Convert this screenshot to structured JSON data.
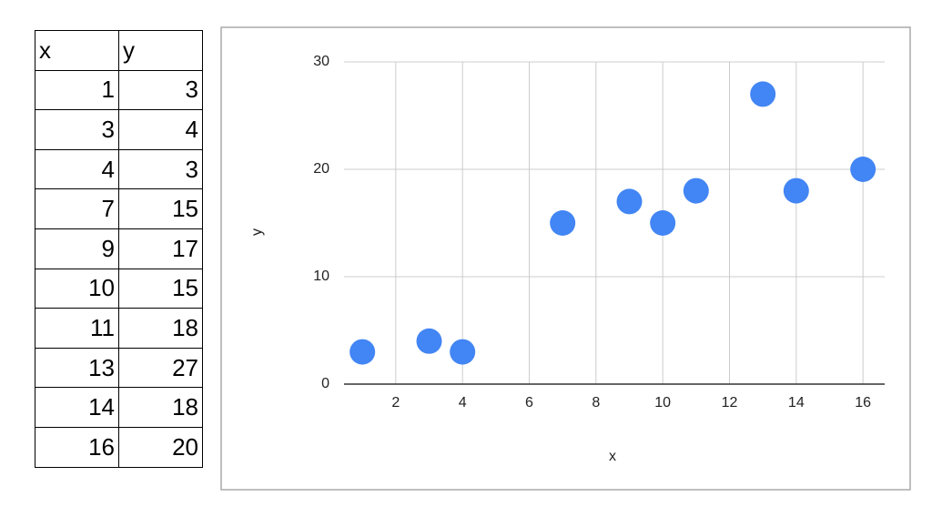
{
  "table": {
    "header": [
      "x",
      "y"
    ]
  },
  "chart_data": {
    "type": "scatter",
    "x_label": "x",
    "y_label": "y",
    "x": [
      1,
      3,
      4,
      7,
      9,
      10,
      11,
      13,
      14,
      16
    ],
    "series": [
      {
        "color": "#4285f4",
        "values": [
          3,
          4,
          3,
          15,
          17,
          15,
          18,
          27,
          18,
          20
        ]
      }
    ],
    "xlim": [
      0.45,
      16.65
    ],
    "xticks": [
      2,
      4,
      6,
      8,
      10,
      12,
      14,
      16
    ],
    "ylim": [
      0,
      30
    ],
    "yticks": [
      0,
      10,
      20,
      30
    ],
    "grid": true
  }
}
